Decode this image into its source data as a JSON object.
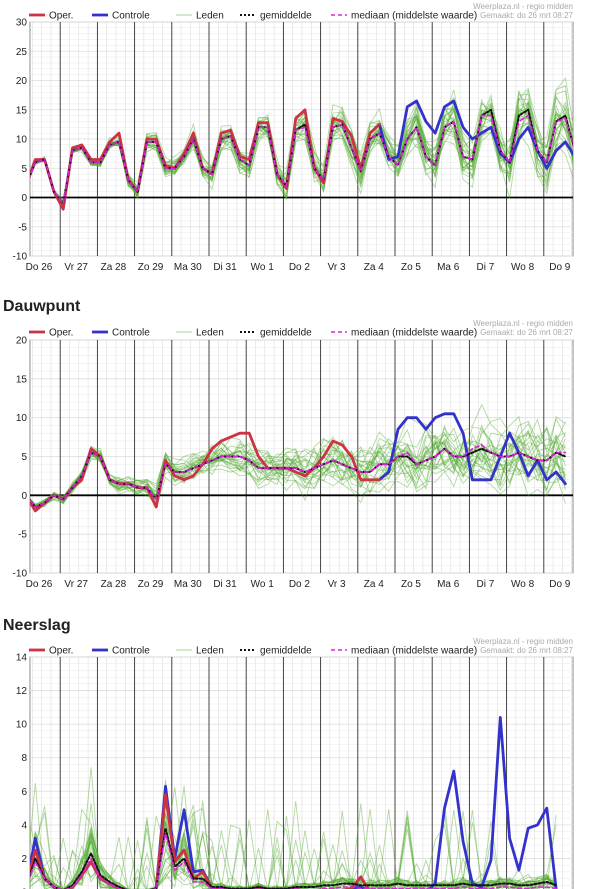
{
  "legend": {
    "oper": "Oper.",
    "controle": "Controle",
    "leden": "Leden",
    "gemiddelde": "gemiddelde",
    "mediaan": "mediaan (middelste waarde)"
  },
  "source": "Weerplaza.nl - regio midden",
  "generated": "Gemaakt: do 26 mrt 08:27",
  "colors": {
    "oper": "#cc3344",
    "controle": "#3333cc",
    "leden": "#55aa33",
    "mean": "#111111",
    "median": "#dd22dd",
    "grid": "#dddddd",
    "day_line": "#333333"
  },
  "x_labels": [
    "Do 26",
    "Vr 27",
    "Za 28",
    "Zo 29",
    "Ma 30",
    "Di 31",
    "Wo 1",
    "Do 2",
    "Vr 3",
    "Za 4",
    "Zo 5",
    "Ma 6",
    "Di 7",
    "Wo 8",
    "Do 9"
  ],
  "chart_data": [
    {
      "type": "line",
      "title": "",
      "ylim": [
        -10,
        30
      ],
      "yticks": [
        -10,
        -5,
        0,
        5,
        10,
        15,
        20,
        25,
        30
      ],
      "x_step_days": 0.25,
      "series": [
        {
          "name": "Oper.",
          "values": [
            2,
            6.5,
            6.5,
            1,
            -2,
            8.5,
            9,
            6.5,
            6.5,
            9.5,
            11,
            3,
            1,
            10,
            10,
            5.5,
            5,
            7.5,
            11,
            5,
            4,
            11,
            11.5,
            7,
            6.5,
            12.8,
            12.8,
            4,
            1.5,
            13.5,
            15,
            5,
            2.5,
            13.5,
            13,
            10.5,
            5,
            11,
            12.5
          ]
        },
        {
          "name": "Controle",
          "values": [
            null,
            null,
            null,
            null,
            null,
            null,
            null,
            null,
            null,
            null,
            null,
            null,
            null,
            null,
            null,
            null,
            null,
            null,
            null,
            null,
            null,
            null,
            null,
            null,
            null,
            null,
            null,
            null,
            null,
            null,
            null,
            null,
            null,
            null,
            null,
            null,
            null,
            null,
            12.5,
            6.5,
            7,
            15.5,
            16.5,
            13,
            11,
            15.5,
            16.5,
            12,
            10,
            11,
            12,
            7.5,
            6,
            10,
            12,
            8,
            5,
            8,
            9.5,
            7
          ]
        },
        {
          "name": "gemiddelde",
          "values": [
            2,
            6,
            6.5,
            1,
            -1,
            8,
            8.5,
            6,
            6,
            9,
            9.5,
            3,
            1,
            9.5,
            9.5,
            5,
            5,
            7,
            10,
            5,
            4,
            10,
            10.5,
            6.5,
            5.5,
            12,
            12,
            4,
            2,
            11.5,
            12.5,
            5,
            3,
            12,
            12.5,
            8.5,
            4.5,
            10,
            11,
            7,
            5.5,
            10,
            12,
            7,
            5.5,
            12,
            13,
            7,
            6.5,
            14,
            15,
            8,
            6,
            14,
            15,
            8,
            6,
            13,
            14,
            8
          ]
        },
        {
          "name": "mediaan (middelste waarde)",
          "values": [
            2,
            6,
            6.5,
            1,
            -1,
            8,
            8.5,
            6,
            6,
            9,
            9.5,
            3,
            1,
            9.5,
            9.5,
            5,
            5,
            7,
            10,
            5,
            4,
            10,
            10.5,
            6.5,
            5.5,
            12,
            12,
            4,
            2,
            11.5,
            12,
            5,
            3,
            12,
            12.5,
            8.5,
            4.5,
            10,
            11,
            7,
            5.5,
            10,
            12,
            7,
            5.5,
            12,
            13,
            7,
            6.5,
            14,
            14,
            8,
            6,
            13,
            14,
            8,
            6,
            13,
            13.5,
            8
          ]
        }
      ]
    },
    {
      "type": "line",
      "title": "Dauwpunt",
      "ylim": [
        -10,
        20
      ],
      "yticks": [
        -10,
        -5,
        0,
        5,
        10,
        15,
        20
      ],
      "x_step_days": 0.25,
      "series": [
        {
          "name": "Oper.",
          "values": [
            0,
            -2,
            -1,
            0,
            -0.5,
            1,
            2,
            6,
            5,
            2,
            1.5,
            1.5,
            1,
            1,
            -1.5,
            4.5,
            2.5,
            2,
            2.5,
            4,
            6,
            7,
            7.5,
            8,
            8,
            5,
            3.5,
            3.5,
            3.5,
            3,
            2.5,
            3.5,
            5,
            7,
            6.5,
            5,
            2,
            2,
            2
          ]
        },
        {
          "name": "Controle",
          "values": [
            null,
            null,
            null,
            null,
            null,
            null,
            null,
            null,
            null,
            null,
            null,
            null,
            null,
            null,
            null,
            null,
            null,
            null,
            null,
            null,
            null,
            null,
            null,
            null,
            null,
            null,
            null,
            null,
            null,
            null,
            null,
            null,
            null,
            null,
            null,
            null,
            null,
            null,
            2,
            3,
            8.5,
            10,
            10,
            8.5,
            10,
            10.5,
            10.5,
            8,
            2,
            2,
            2,
            5,
            8,
            5.5,
            2.5,
            4.5,
            2,
            3,
            1.5
          ]
        },
        {
          "name": "gemiddelde",
          "values": [
            0,
            -1.5,
            -1,
            0,
            -0.5,
            1,
            2.5,
            5.5,
            5,
            2,
            1.5,
            1.5,
            1,
            1,
            -0.5,
            4,
            3,
            3,
            3.5,
            4,
            4.5,
            5,
            5,
            5,
            4.5,
            3.5,
            3.5,
            3.5,
            3.5,
            3.5,
            3,
            3.5,
            4,
            4.5,
            4,
            3.5,
            3,
            3,
            4,
            4,
            5,
            5,
            4,
            4.5,
            5,
            6,
            5,
            5,
            5.5,
            6,
            5.5,
            5,
            5,
            5.5,
            5,
            4.5,
            4.5,
            5.5,
            5
          ]
        },
        {
          "name": "mediaan (middelste waarde)",
          "values": [
            0,
            -1.5,
            -1,
            0,
            -0.5,
            1,
            2.5,
            5.5,
            5,
            2,
            1.5,
            1.5,
            1,
            1,
            -0.5,
            4,
            3,
            3,
            3.5,
            4,
            4.5,
            5,
            5,
            5,
            4.5,
            3.5,
            3.5,
            3.5,
            3.5,
            3.5,
            3,
            3.5,
            4,
            4.5,
            4,
            3.5,
            3,
            3,
            4,
            4,
            5,
            5.5,
            4,
            4.5,
            5,
            6,
            5,
            5,
            6,
            6.5,
            5.5,
            5,
            5,
            5.5,
            5,
            4.5,
            4.5,
            5.5,
            5.5
          ]
        }
      ]
    },
    {
      "type": "line",
      "title": "Neerslag",
      "ylim": [
        0,
        14
      ],
      "yticks": [
        0,
        2,
        4,
        6,
        8,
        10,
        12,
        14
      ],
      "x_step_days": 0.25,
      "series": [
        {
          "name": "Oper.",
          "values": [
            0.3,
            2.5,
            0.8,
            0.3,
            0,
            0.3,
            1,
            1.8,
            0.8,
            0.5,
            0.2,
            0,
            0,
            0,
            0.2,
            5.8,
            1.8,
            2.5,
            0.8,
            1.2,
            0.2,
            0.2,
            0,
            0,
            0,
            0.3,
            0.1,
            0,
            0,
            0.2,
            0,
            0,
            0,
            0,
            0.1,
            0.2,
            0.9,
            0,
            0
          ]
        },
        {
          "name": "Controle",
          "values": [
            0.3,
            3.2,
            0.8,
            0.3,
            0,
            0.3,
            1,
            1.8,
            0.8,
            0.5,
            0.2,
            0,
            0,
            0,
            0.2,
            6.3,
            2,
            4.9,
            1.2,
            1.3,
            0.2,
            0.2,
            0,
            0,
            0,
            0.3,
            0.1,
            0,
            0,
            0.2,
            0,
            0,
            0,
            0,
            0.1,
            0.2,
            0.3,
            0,
            0,
            0,
            0.1,
            0.1,
            0,
            0,
            0.5,
            5,
            7.2,
            3,
            0.5,
            0.3,
            1.9,
            10.4,
            3.2,
            1.3,
            3.8,
            4,
            5,
            0.2
          ]
        },
        {
          "name": "gemiddelde",
          "values": [
            0.3,
            2,
            0.8,
            0.3,
            0.1,
            0.4,
            1.2,
            2.3,
            1,
            0.6,
            0.3,
            0.1,
            0.1,
            0.1,
            0.2,
            3.8,
            1.5,
            2,
            0.8,
            0.8,
            0.3,
            0.3,
            0.2,
            0.2,
            0.2,
            0.3,
            0.2,
            0.2,
            0.2,
            0.3,
            0.3,
            0.3,
            0.4,
            0.4,
            0.5,
            0.5,
            0.4,
            0.4,
            0.4,
            0.4,
            0.5,
            0.4,
            0.4,
            0.4,
            0.4,
            0.4,
            0.4,
            0.5,
            0.4,
            0.4,
            0.4,
            0.5,
            0.5,
            0.4,
            0.4,
            0.5,
            0.6,
            0.4
          ]
        },
        {
          "name": "mediaan (middelste waarde)",
          "values": [
            0.3,
            1.8,
            0.8,
            0.3,
            0.1,
            0.3,
            1,
            2,
            0.8,
            0.5,
            0.2,
            0.1,
            0,
            0,
            0.2,
            3.5,
            1.3,
            1.8,
            0.6,
            0.6,
            0.2,
            0.2,
            0.1,
            0.1,
            0.1,
            0.2,
            0.1,
            0.1,
            0.1,
            0.2,
            0.1,
            0.1,
            0.2,
            0.2,
            0.3,
            0.3,
            0.2,
            0.2,
            0.2,
            0.2,
            0.2,
            0.2,
            0.2,
            0.2,
            0.2,
            0.2,
            0.2,
            0.3,
            0.2,
            0.2,
            0.2,
            0.3,
            0.3,
            0.2,
            0.2,
            0.3,
            0.3,
            0.2
          ]
        }
      ]
    }
  ]
}
